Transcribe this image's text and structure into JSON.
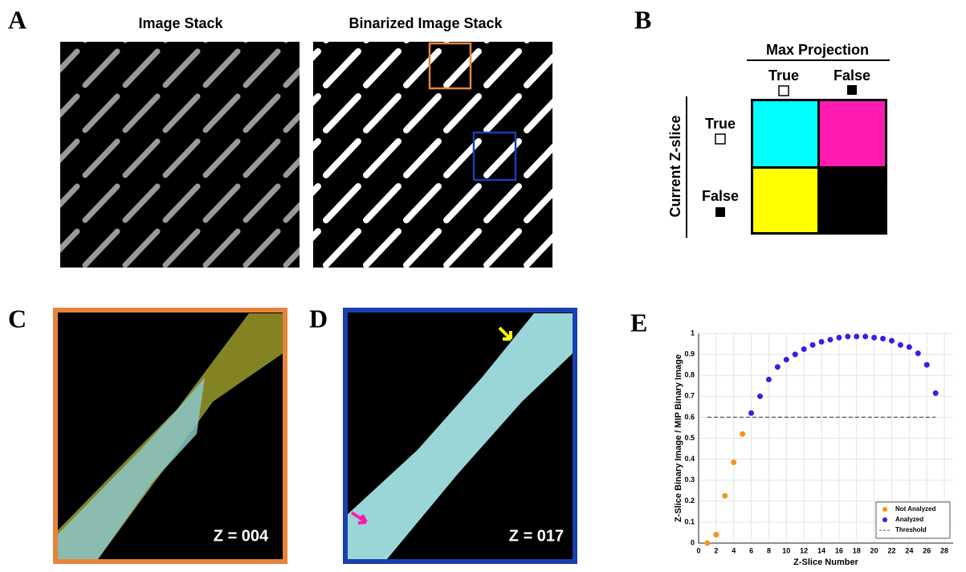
{
  "panels": {
    "A": {
      "label": "A",
      "titles": [
        "Image Stack",
        "Binarized Image Stack"
      ]
    },
    "B": {
      "label": "B",
      "title": "Max Projection",
      "col_labels": [
        "True",
        "False"
      ],
      "row_title": "Current Z-slice",
      "row_labels": [
        "True",
        "False"
      ]
    },
    "C": {
      "label": "C",
      "annotation": "Z = 004"
    },
    "D": {
      "label": "D",
      "annotation": "Z = 017"
    },
    "E": {
      "label": "E"
    }
  },
  "chart_data": {
    "type": "scatter",
    "xlabel": "Z-Slice Number",
    "ylabel": "Z-Slice Binary Image / MIP Binary Image",
    "xlim": [
      0,
      29
    ],
    "ylim": [
      0,
      1
    ],
    "xticks": [
      0,
      2,
      4,
      6,
      8,
      10,
      12,
      14,
      16,
      18,
      20,
      22,
      24,
      26,
      28
    ],
    "yticks": [
      0,
      0.1,
      0.2,
      0.3,
      0.4,
      0.5,
      0.6,
      0.7,
      0.8,
      0.9,
      1
    ],
    "grid": true,
    "legend": "lower right",
    "series": [
      {
        "name": "Not Analyzed",
        "color": "#f7931e",
        "kind": "points",
        "x": [
          1,
          2,
          3,
          4,
          5
        ],
        "values": [
          0.0,
          0.04,
          0.225,
          0.385,
          0.52
        ]
      },
      {
        "name": "Analyzed",
        "color": "#3a1ee6",
        "kind": "points",
        "x": [
          6,
          7,
          8,
          9,
          10,
          11,
          12,
          13,
          14,
          15,
          16,
          17,
          18,
          19,
          20,
          21,
          22,
          23,
          24,
          25,
          26,
          27
        ],
        "values": [
          0.62,
          0.7,
          0.78,
          0.84,
          0.875,
          0.9,
          0.925,
          0.945,
          0.96,
          0.97,
          0.98,
          0.985,
          0.985,
          0.985,
          0.98,
          0.975,
          0.965,
          0.945,
          0.935,
          0.905,
          0.85,
          0.715
        ]
      },
      {
        "name": "Threshold",
        "color": "#555555",
        "kind": "line",
        "dash": true,
        "x": [
          1,
          27
        ],
        "values": [
          0.6,
          0.6
        ]
      }
    ]
  }
}
